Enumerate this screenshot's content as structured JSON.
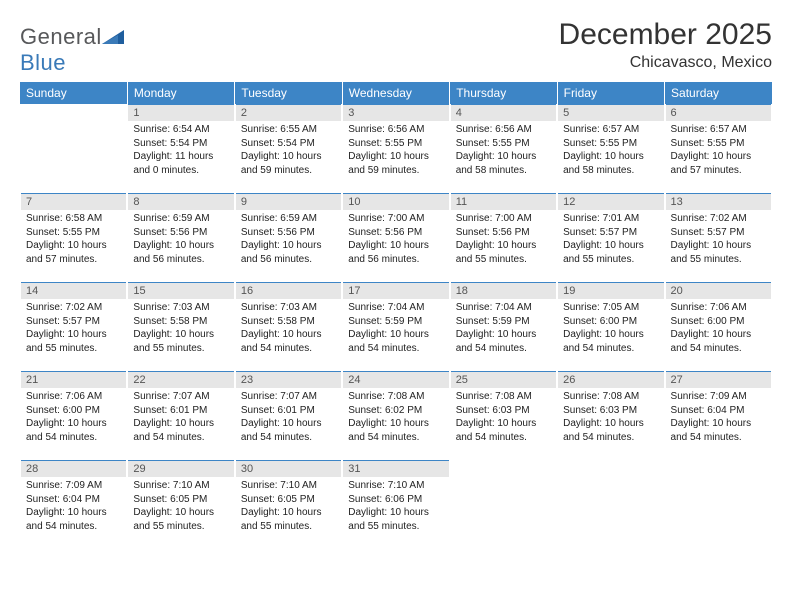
{
  "brand": {
    "word1": "General",
    "word2": "Blue"
  },
  "title": "December 2025",
  "location": "Chicavasco, Mexico",
  "colors": {
    "header_bg": "#3d85c6",
    "header_fg": "#ffffff",
    "daynum_bg": "#e6e6e6",
    "border": "#3d85c6",
    "text": "#222222",
    "logo_gray": "#57585a",
    "logo_blue": "#3a7ab8"
  },
  "weekdays": [
    "Sunday",
    "Monday",
    "Tuesday",
    "Wednesday",
    "Thursday",
    "Friday",
    "Saturday"
  ],
  "weeks": [
    [
      null,
      {
        "n": "1",
        "sr": "6:54 AM",
        "ss": "5:54 PM",
        "dl": "11 hours and 0 minutes."
      },
      {
        "n": "2",
        "sr": "6:55 AM",
        "ss": "5:54 PM",
        "dl": "10 hours and 59 minutes."
      },
      {
        "n": "3",
        "sr": "6:56 AM",
        "ss": "5:55 PM",
        "dl": "10 hours and 59 minutes."
      },
      {
        "n": "4",
        "sr": "6:56 AM",
        "ss": "5:55 PM",
        "dl": "10 hours and 58 minutes."
      },
      {
        "n": "5",
        "sr": "6:57 AM",
        "ss": "5:55 PM",
        "dl": "10 hours and 58 minutes."
      },
      {
        "n": "6",
        "sr": "6:57 AM",
        "ss": "5:55 PM",
        "dl": "10 hours and 57 minutes."
      }
    ],
    [
      {
        "n": "7",
        "sr": "6:58 AM",
        "ss": "5:55 PM",
        "dl": "10 hours and 57 minutes."
      },
      {
        "n": "8",
        "sr": "6:59 AM",
        "ss": "5:56 PM",
        "dl": "10 hours and 56 minutes."
      },
      {
        "n": "9",
        "sr": "6:59 AM",
        "ss": "5:56 PM",
        "dl": "10 hours and 56 minutes."
      },
      {
        "n": "10",
        "sr": "7:00 AM",
        "ss": "5:56 PM",
        "dl": "10 hours and 56 minutes."
      },
      {
        "n": "11",
        "sr": "7:00 AM",
        "ss": "5:56 PM",
        "dl": "10 hours and 55 minutes."
      },
      {
        "n": "12",
        "sr": "7:01 AM",
        "ss": "5:57 PM",
        "dl": "10 hours and 55 minutes."
      },
      {
        "n": "13",
        "sr": "7:02 AM",
        "ss": "5:57 PM",
        "dl": "10 hours and 55 minutes."
      }
    ],
    [
      {
        "n": "14",
        "sr": "7:02 AM",
        "ss": "5:57 PM",
        "dl": "10 hours and 55 minutes."
      },
      {
        "n": "15",
        "sr": "7:03 AM",
        "ss": "5:58 PM",
        "dl": "10 hours and 55 minutes."
      },
      {
        "n": "16",
        "sr": "7:03 AM",
        "ss": "5:58 PM",
        "dl": "10 hours and 54 minutes."
      },
      {
        "n": "17",
        "sr": "7:04 AM",
        "ss": "5:59 PM",
        "dl": "10 hours and 54 minutes."
      },
      {
        "n": "18",
        "sr": "7:04 AM",
        "ss": "5:59 PM",
        "dl": "10 hours and 54 minutes."
      },
      {
        "n": "19",
        "sr": "7:05 AM",
        "ss": "6:00 PM",
        "dl": "10 hours and 54 minutes."
      },
      {
        "n": "20",
        "sr": "7:06 AM",
        "ss": "6:00 PM",
        "dl": "10 hours and 54 minutes."
      }
    ],
    [
      {
        "n": "21",
        "sr": "7:06 AM",
        "ss": "6:00 PM",
        "dl": "10 hours and 54 minutes."
      },
      {
        "n": "22",
        "sr": "7:07 AM",
        "ss": "6:01 PM",
        "dl": "10 hours and 54 minutes."
      },
      {
        "n": "23",
        "sr": "7:07 AM",
        "ss": "6:01 PM",
        "dl": "10 hours and 54 minutes."
      },
      {
        "n": "24",
        "sr": "7:08 AM",
        "ss": "6:02 PM",
        "dl": "10 hours and 54 minutes."
      },
      {
        "n": "25",
        "sr": "7:08 AM",
        "ss": "6:03 PM",
        "dl": "10 hours and 54 minutes."
      },
      {
        "n": "26",
        "sr": "7:08 AM",
        "ss": "6:03 PM",
        "dl": "10 hours and 54 minutes."
      },
      {
        "n": "27",
        "sr": "7:09 AM",
        "ss": "6:04 PM",
        "dl": "10 hours and 54 minutes."
      }
    ],
    [
      {
        "n": "28",
        "sr": "7:09 AM",
        "ss": "6:04 PM",
        "dl": "10 hours and 54 minutes."
      },
      {
        "n": "29",
        "sr": "7:10 AM",
        "ss": "6:05 PM",
        "dl": "10 hours and 55 minutes."
      },
      {
        "n": "30",
        "sr": "7:10 AM",
        "ss": "6:05 PM",
        "dl": "10 hours and 55 minutes."
      },
      {
        "n": "31",
        "sr": "7:10 AM",
        "ss": "6:06 PM",
        "dl": "10 hours and 55 minutes."
      },
      null,
      null,
      null
    ]
  ],
  "labels": {
    "sunrise": "Sunrise:",
    "sunset": "Sunset:",
    "daylight": "Daylight:"
  }
}
